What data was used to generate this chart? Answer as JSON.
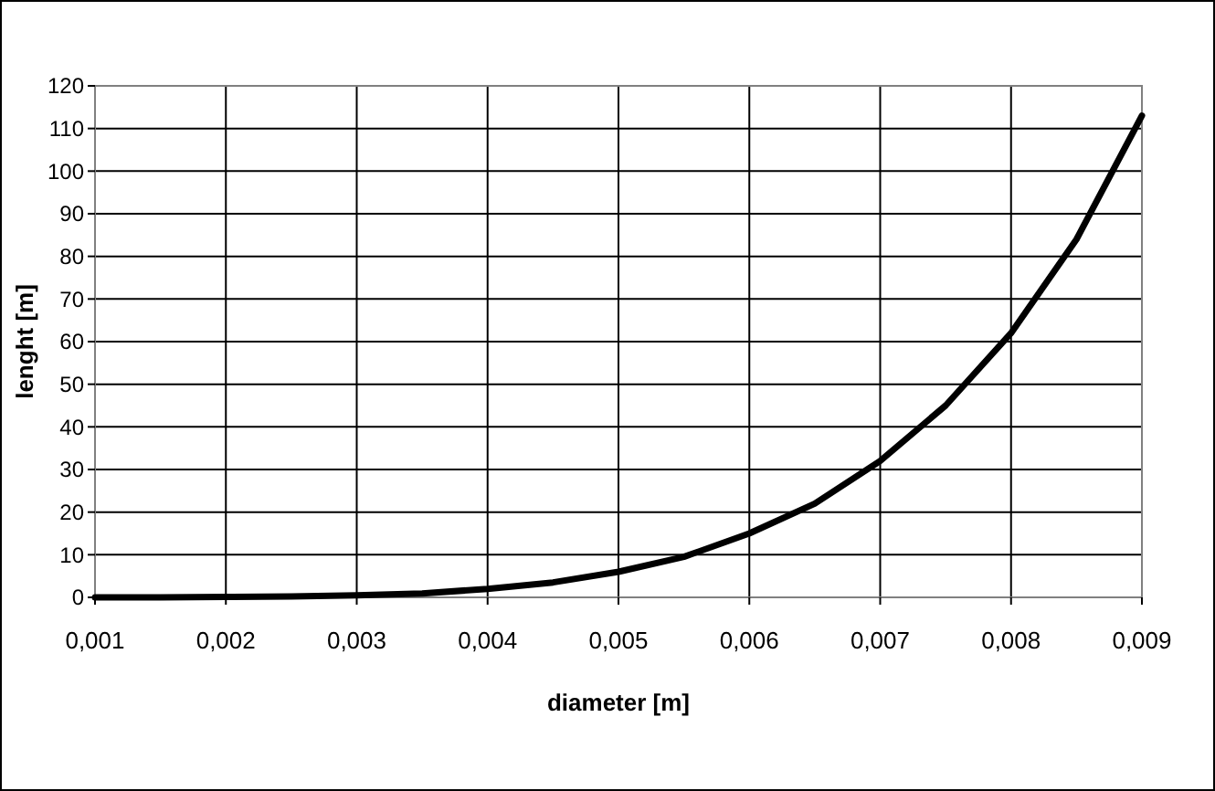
{
  "chart_data": {
    "type": "line",
    "xlabel": "diameter [m]",
    "ylabel": "lenght [m]",
    "x": [
      0.001,
      0.0015,
      0.002,
      0.0025,
      0.003,
      0.0035,
      0.004,
      0.0045,
      0.005,
      0.0055,
      0.006,
      0.0065,
      0.007,
      0.0075,
      0.008,
      0.0085,
      0.009
    ],
    "series": [
      {
        "color": "#000000",
        "values": [
          0,
          0,
          0.1,
          0.2,
          0.5,
          0.9,
          2,
          3.5,
          6,
          9.5,
          15,
          22,
          32,
          45,
          62,
          84,
          113
        ]
      }
    ],
    "xlim": [
      0.001,
      0.009
    ],
    "xticks": [
      {
        "value": 0.001,
        "label": "0,001"
      },
      {
        "value": 0.002,
        "label": "0,002"
      },
      {
        "value": 0.003,
        "label": "0,003"
      },
      {
        "value": 0.004,
        "label": "0,004"
      },
      {
        "value": 0.005,
        "label": "0,005"
      },
      {
        "value": 0.006,
        "label": "0,006"
      },
      {
        "value": 0.007,
        "label": "0,007"
      },
      {
        "value": 0.008,
        "label": "0,008"
      },
      {
        "value": 0.009,
        "label": "0,009"
      }
    ],
    "ylim": [
      0,
      120
    ],
    "yticks": [
      0,
      10,
      20,
      30,
      40,
      50,
      60,
      70,
      80,
      90,
      100,
      110,
      120
    ],
    "grid": true,
    "marker": "none",
    "line_style": "solid"
  }
}
